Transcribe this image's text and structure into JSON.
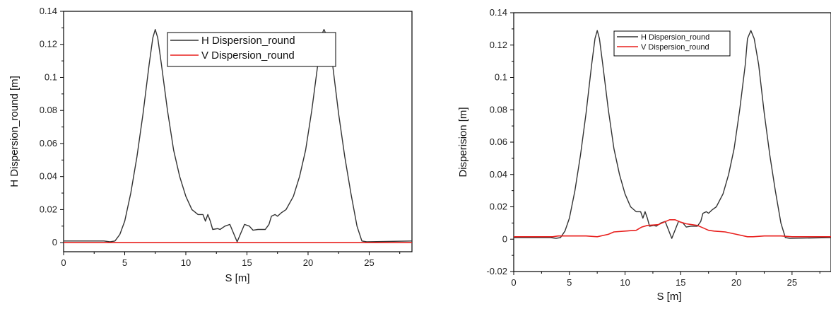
{
  "chart_data": [
    {
      "type": "line",
      "xlabel": "S [m]",
      "ylabel": "H Dispersion_round [m]",
      "xlim": [
        0,
        28.5
      ],
      "ylim": [
        -0.0055,
        0.14
      ],
      "xticks": [
        0,
        5,
        10,
        15,
        20,
        25
      ],
      "yticks": [
        0,
        0.02,
        0.04,
        0.06,
        0.08,
        0.1,
        0.12,
        0.14
      ],
      "legend_position": "top-right",
      "series": [
        {
          "name": "H Dispersion_round",
          "color": "#333333",
          "x": [
            0,
            3.3,
            3.8,
            4.2,
            4.6,
            5.0,
            5.5,
            6.0,
            6.5,
            7.0,
            7.3,
            7.5,
            7.7,
            8.0,
            8.5,
            9.0,
            9.5,
            10.0,
            10.5,
            11.0,
            11.4,
            11.6,
            11.8,
            12.0,
            12.2,
            12.6,
            12.8,
            13.2,
            13.6,
            14.2,
            14.8,
            15.2,
            15.5,
            15.9,
            16.5,
            16.8,
            17.0,
            17.3,
            17.5,
            17.8,
            18.2,
            18.8,
            19.3,
            19.8,
            20.3,
            20.8,
            21.0,
            21.3,
            21.6,
            22.0,
            22.5,
            23.0,
            23.5,
            24.0,
            24.4,
            24.8,
            28.5
          ],
          "y": [
            0.001,
            0.001,
            0.0005,
            0.001,
            0.005,
            0.013,
            0.03,
            0.052,
            0.078,
            0.108,
            0.124,
            0.129,
            0.124,
            0.108,
            0.08,
            0.056,
            0.04,
            0.028,
            0.02,
            0.017,
            0.017,
            0.013,
            0.017,
            0.013,
            0.008,
            0.0085,
            0.008,
            0.01,
            0.011,
            0.0005,
            0.011,
            0.01,
            0.0075,
            0.008,
            0.008,
            0.011,
            0.016,
            0.017,
            0.016,
            0.018,
            0.02,
            0.028,
            0.04,
            0.056,
            0.08,
            0.108,
            0.124,
            0.129,
            0.124,
            0.108,
            0.078,
            0.052,
            0.03,
            0.01,
            0.001,
            0.0005,
            0.001
          ]
        },
        {
          "name": "V Dispersion_round",
          "color": "#e8201e",
          "x": [
            0,
            28.5
          ],
          "y": [
            0,
            0
          ]
        }
      ]
    },
    {
      "type": "line",
      "xlabel": "S [m]",
      "ylabel": "Disperision [m]",
      "xlim": [
        0,
        28.5
      ],
      "ylim": [
        -0.02,
        0.14
      ],
      "xticks": [
        0,
        5,
        10,
        15,
        20,
        25
      ],
      "yticks": [
        -0.02,
        0,
        0.02,
        0.04,
        0.06,
        0.08,
        0.1,
        0.12,
        0.14
      ],
      "legend_position": "top-center",
      "series": [
        {
          "name": "H Dispersion_round",
          "color": "#333333",
          "x": [
            0,
            3.3,
            3.8,
            4.2,
            4.6,
            5.0,
            5.5,
            6.0,
            6.5,
            7.0,
            7.3,
            7.5,
            7.7,
            8.0,
            8.5,
            9.0,
            9.5,
            10.0,
            10.5,
            11.0,
            11.4,
            11.6,
            11.8,
            12.0,
            12.2,
            12.6,
            12.8,
            13.2,
            13.6,
            14.2,
            14.8,
            15.2,
            15.5,
            15.9,
            16.5,
            16.8,
            17.0,
            17.3,
            17.5,
            17.8,
            18.2,
            18.8,
            19.3,
            19.8,
            20.3,
            20.8,
            21.0,
            21.3,
            21.6,
            22.0,
            22.5,
            23.0,
            23.5,
            24.0,
            24.4,
            24.8,
            28.5
          ],
          "y": [
            0.001,
            0.001,
            0.0005,
            0.001,
            0.005,
            0.013,
            0.03,
            0.052,
            0.078,
            0.108,
            0.124,
            0.129,
            0.124,
            0.108,
            0.08,
            0.056,
            0.04,
            0.028,
            0.02,
            0.017,
            0.017,
            0.013,
            0.017,
            0.013,
            0.008,
            0.0085,
            0.008,
            0.01,
            0.011,
            0.0005,
            0.011,
            0.01,
            0.0075,
            0.008,
            0.008,
            0.011,
            0.016,
            0.017,
            0.016,
            0.018,
            0.02,
            0.028,
            0.04,
            0.056,
            0.08,
            0.108,
            0.124,
            0.129,
            0.124,
            0.108,
            0.078,
            0.052,
            0.03,
            0.01,
            0.001,
            0.0005,
            0.001
          ]
        },
        {
          "name": "V Dispersion_round",
          "color": "#e8201e",
          "x": [
            0,
            3.5,
            4.0,
            6.5,
            7.5,
            8.5,
            9.0,
            10.0,
            11.0,
            11.5,
            12.0,
            13.0,
            13.5,
            14.0,
            14.5,
            15.0,
            15.5,
            16.0,
            16.5,
            17.0,
            17.5,
            18.0,
            19.0,
            20.0,
            21.0,
            21.5,
            22.5,
            24.0,
            25.0,
            28.5
          ],
          "y": [
            0.0015,
            0.0015,
            0.002,
            0.002,
            0.0015,
            0.003,
            0.0045,
            0.005,
            0.0055,
            0.0075,
            0.0085,
            0.009,
            0.0105,
            0.012,
            0.012,
            0.0105,
            0.0095,
            0.009,
            0.0085,
            0.007,
            0.0055,
            0.005,
            0.0045,
            0.003,
            0.0015,
            0.0015,
            0.002,
            0.002,
            0.0015,
            0.0015
          ]
        }
      ]
    }
  ]
}
